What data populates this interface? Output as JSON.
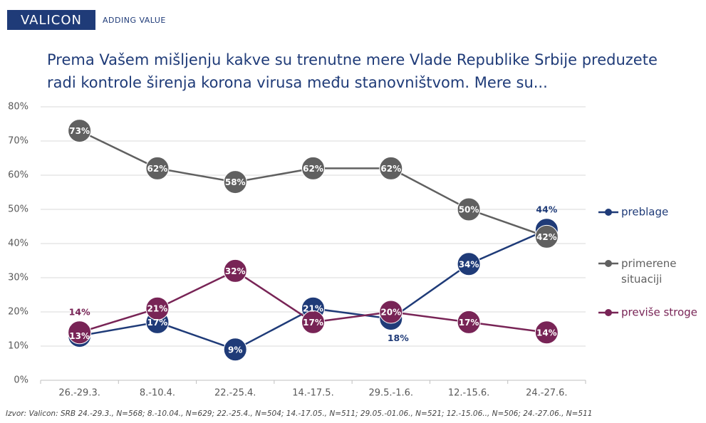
{
  "chart_data": {
    "type": "line",
    "logo": "VALICON",
    "tagline": "ADDING VALUE",
    "title": "Prema Vašem mišljenju kakve su trenutne mere Vlade Republike Srbije preduzete radi kontrole širenja korona virusa među stanovništvom. Mere su...",
    "note": "Izvor: Valicon: SRB 24.-29.3., N=568; 8.-10.04., N=629; 22.-25.4., N=504; 14.-17.05., N=511; 29.05.-01.06., N=521; 12.-15.06.., N=506; 24.-27.06., N=511",
    "categories": [
      "26.-29.3.",
      "8.-10.4.",
      "22.-25.4.",
      "14.-17.5.",
      "29.5.-1.6.",
      "12.-15.6.",
      "24.-27.6."
    ],
    "series": [
      {
        "name": "preblage",
        "color": "#1f3b78",
        "values": [
          13,
          17,
          9,
          21,
          18,
          34,
          44
        ],
        "value_labels": [
          "13%",
          "17%",
          "9%",
          "21%",
          "18%",
          "34%",
          "44%"
        ]
      },
      {
        "name": "primerene situaciji",
        "color": "#606060",
        "values": [
          73,
          62,
          58,
          62,
          62,
          50,
          42
        ],
        "value_labels": [
          "73%",
          "62%",
          "58%",
          "62%",
          "62%",
          "50%",
          "42%"
        ]
      },
      {
        "name": "previše stroge",
        "color": "#782456",
        "values": [
          14,
          21,
          32,
          17,
          20,
          17,
          14
        ],
        "value_labels": [
          "14%",
          "21%",
          "32%",
          "17%",
          "20%",
          "17%",
          "14%"
        ]
      }
    ],
    "ylim": [
      0,
      80
    ],
    "yticks": [
      {
        "value": 0,
        "label": "0%"
      },
      {
        "value": 10,
        "label": "10%"
      },
      {
        "value": 20,
        "label": "20%"
      },
      {
        "value": 30,
        "label": "30%"
      },
      {
        "value": 40,
        "label": "40%"
      },
      {
        "value": 50,
        "label": "50%"
      },
      {
        "value": 60,
        "label": "60%"
      },
      {
        "value": 70,
        "label": "70%"
      },
      {
        "value": 80,
        "label": "80%"
      }
    ],
    "grid": true,
    "legend": "right"
  }
}
